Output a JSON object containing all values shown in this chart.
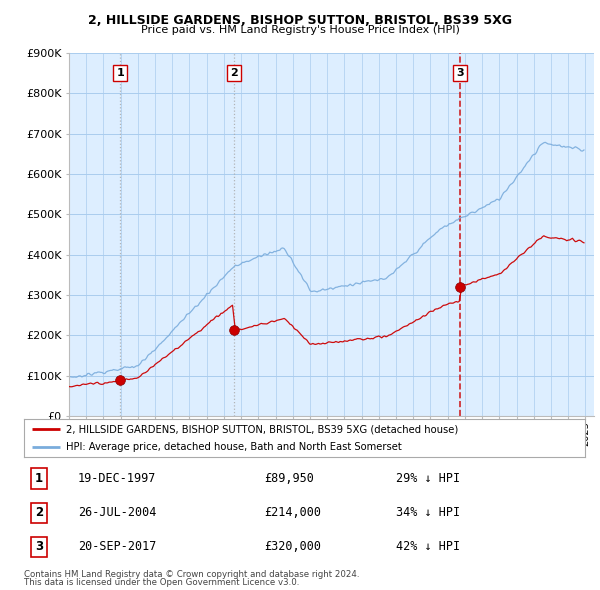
{
  "title1": "2, HILLSIDE GARDENS, BISHOP SUTTON, BRISTOL, BS39 5XG",
  "title2": "Price paid vs. HM Land Registry's House Price Index (HPI)",
  "ylim": [
    0,
    900000
  ],
  "yticks": [
    0,
    100000,
    200000,
    300000,
    400000,
    500000,
    600000,
    700000,
    800000,
    900000
  ],
  "ytick_labels": [
    "£0",
    "£100K",
    "£200K",
    "£300K",
    "£400K",
    "£500K",
    "£600K",
    "£700K",
    "£800K",
    "£900K"
  ],
  "xlim_start": 1995.0,
  "xlim_end": 2025.5,
  "red_line_color": "#cc0000",
  "blue_line_color": "#7aacdc",
  "chart_bg_color": "#ddeeff",
  "background_color": "#ffffff",
  "grid_color": "#aaccee",
  "sale_dates": [
    1997.97,
    2004.56,
    2017.72
  ],
  "sale_prices": [
    89950,
    214000,
    320000
  ],
  "sale_labels": [
    "1",
    "2",
    "3"
  ],
  "vline_colors": [
    "#aaaaaa",
    "#aaaaaa",
    "#cc0000"
  ],
  "legend_line1": "2, HILLSIDE GARDENS, BISHOP SUTTON, BRISTOL, BS39 5XG (detached house)",
  "legend_line2": "HPI: Average price, detached house, Bath and North East Somerset",
  "table_data": [
    [
      "1",
      "19-DEC-1997",
      "£89,950",
      "29% ↓ HPI"
    ],
    [
      "2",
      "26-JUL-2004",
      "£214,000",
      "34% ↓ HPI"
    ],
    [
      "3",
      "20-SEP-2017",
      "£320,000",
      "42% ↓ HPI"
    ]
  ],
  "footer1": "Contains HM Land Registry data © Crown copyright and database right 2024.",
  "footer2": "This data is licensed under the Open Government Licence v3.0."
}
